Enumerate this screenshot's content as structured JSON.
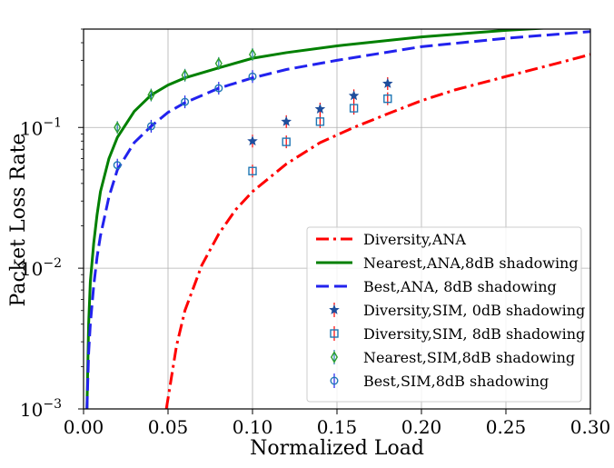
{
  "chart_data": {
    "type": "line",
    "xlabel": "Normalized Load",
    "ylabel": "Packet Loss Rate",
    "xlim": [
      0,
      0.3
    ],
    "ylim": [
      0.001,
      0.5
    ],
    "yscale": "log",
    "grid": true,
    "legend_position": "lower-right",
    "x_ticks": [
      {
        "value": 0.0,
        "label": "0.00"
      },
      {
        "value": 0.05,
        "label": "0.05"
      },
      {
        "value": 0.1,
        "label": "0.10"
      },
      {
        "value": 0.15,
        "label": "0.15"
      },
      {
        "value": 0.2,
        "label": "0.20"
      },
      {
        "value": 0.25,
        "label": "0.25"
      },
      {
        "value": 0.3,
        "label": "0.30"
      }
    ],
    "y_ticks": [
      {
        "value": 0.001,
        "base": "10",
        "exp": "−3"
      },
      {
        "value": 0.01,
        "base": "10",
        "exp": "−2"
      },
      {
        "value": 0.1,
        "base": "10",
        "exp": "−1"
      }
    ],
    "series": [
      {
        "name": "Diversity,ANA",
        "kind": "line",
        "style": "dashdot",
        "color": "#ff0000",
        "x": [
          0.049,
          0.055,
          0.06,
          0.07,
          0.08,
          0.09,
          0.1,
          0.12,
          0.14,
          0.16,
          0.18,
          0.2,
          0.22,
          0.25,
          0.28,
          0.3
        ],
        "y": [
          0.001,
          0.0028,
          0.005,
          0.0105,
          0.0175,
          0.026,
          0.035,
          0.055,
          0.078,
          0.1,
          0.125,
          0.155,
          0.185,
          0.23,
          0.285,
          0.33
        ]
      },
      {
        "name": "Nearest,ANA,8dB shadowing",
        "kind": "line",
        "style": "solid",
        "color": "#008000",
        "x": [
          0.002,
          0.003,
          0.004,
          0.006,
          0.008,
          0.01,
          0.015,
          0.02,
          0.03,
          0.04,
          0.05,
          0.06,
          0.08,
          0.1,
          0.12,
          0.15,
          0.2,
          0.25,
          0.3
        ],
        "y": [
          0.001,
          0.004,
          0.008,
          0.015,
          0.024,
          0.035,
          0.06,
          0.085,
          0.13,
          0.17,
          0.2,
          0.225,
          0.265,
          0.31,
          0.34,
          0.38,
          0.44,
          0.49,
          0.53
        ]
      },
      {
        "name": "Best,ANA, 8dB shadowing",
        "kind": "line",
        "style": "dashed",
        "color": "#2222ee",
        "x": [
          0.002,
          0.003,
          0.004,
          0.006,
          0.008,
          0.01,
          0.015,
          0.02,
          0.03,
          0.04,
          0.05,
          0.06,
          0.08,
          0.1,
          0.12,
          0.15,
          0.2,
          0.25,
          0.3
        ],
        "y": [
          0.001,
          0.0025,
          0.004,
          0.0075,
          0.012,
          0.017,
          0.032,
          0.05,
          0.078,
          0.102,
          0.128,
          0.15,
          0.19,
          0.225,
          0.258,
          0.3,
          0.375,
          0.43,
          0.48
        ]
      },
      {
        "name": "Diversity,SIM, 0dB shadowing",
        "kind": "scatter",
        "marker": "star",
        "color": "#1f4e9c",
        "errcolor": "#ff0000",
        "x": [
          0.1,
          0.12,
          0.14,
          0.16,
          0.18
        ],
        "y": [
          0.08,
          0.11,
          0.135,
          0.168,
          0.205
        ]
      },
      {
        "name": "Diversity,SIM, 8dB shadowing",
        "kind": "scatter",
        "marker": "square",
        "color": "#1f77b4",
        "errcolor": "#ff0000",
        "x": [
          0.1,
          0.12,
          0.14,
          0.16,
          0.18
        ],
        "y": [
          0.049,
          0.079,
          0.11,
          0.137,
          0.16
        ]
      },
      {
        "name": "Nearest,SIM,8dB shadowing",
        "kind": "scatter",
        "marker": "diamond",
        "color": "#2ca02c",
        "errcolor": "#1f77b4",
        "x": [
          0.02,
          0.04,
          0.06,
          0.08,
          0.1
        ],
        "y": [
          0.1,
          0.17,
          0.235,
          0.285,
          0.33
        ]
      },
      {
        "name": "Best,SIM,8dB shadowing",
        "kind": "scatter",
        "marker": "circle",
        "color": "#1f77b4",
        "errcolor": "#2222ee",
        "x": [
          0.02,
          0.04,
          0.06,
          0.08,
          0.1
        ],
        "y": [
          0.054,
          0.102,
          0.152,
          0.19,
          0.23
        ]
      }
    ]
  }
}
